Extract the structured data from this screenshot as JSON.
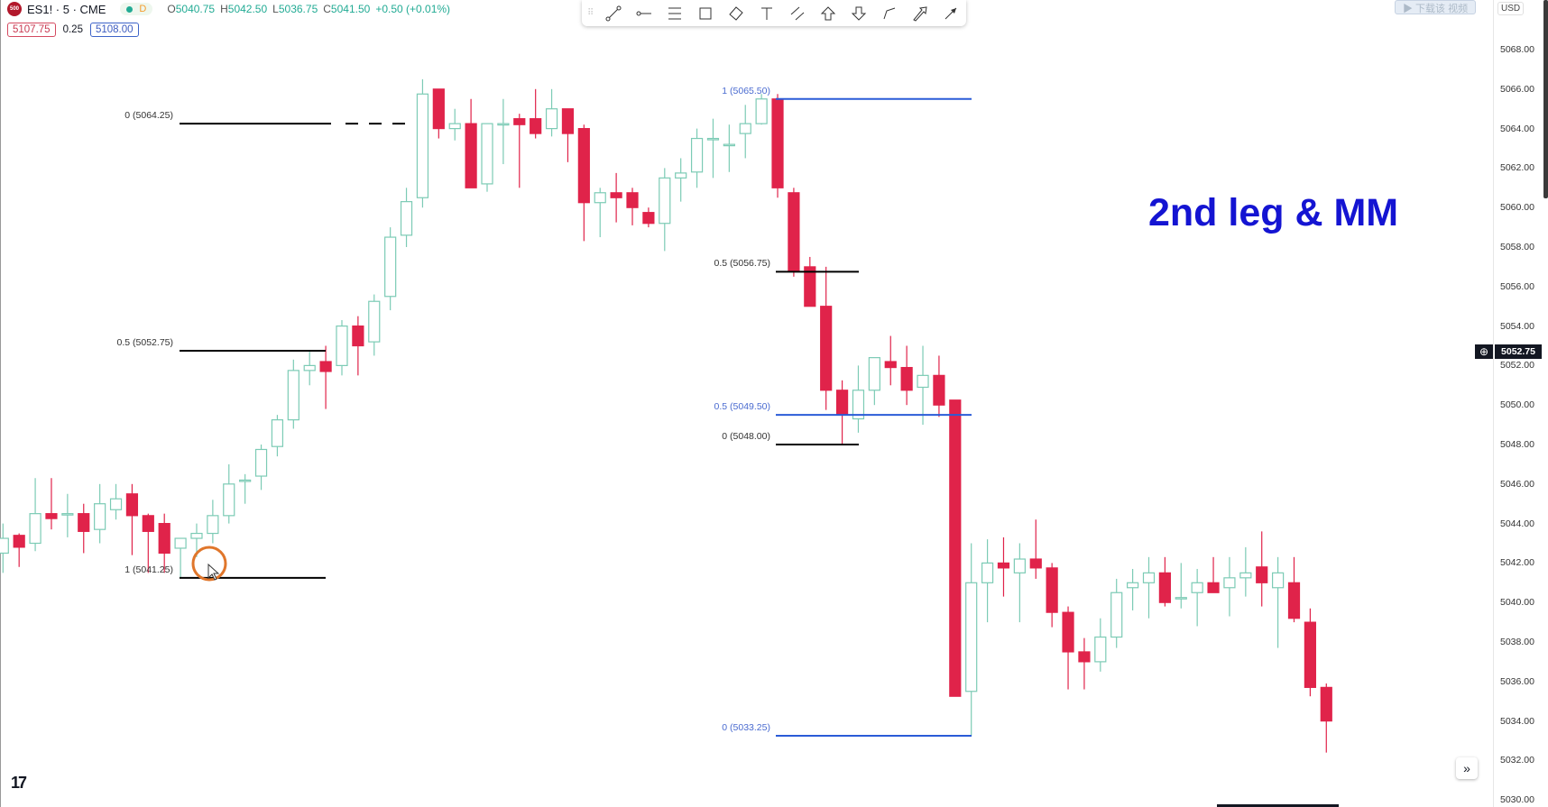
{
  "header": {
    "symbol_badge": "500",
    "symbol": "ES1! · 5 · CME",
    "session_badge": "D",
    "ohlc": {
      "o_label": "O",
      "o": "5040.75",
      "h_label": "H",
      "h": "5042.50",
      "l_label": "L",
      "l": "5036.75",
      "c_label": "C",
      "c": "5041.50",
      "change": "+0.50 (+0.01%)"
    },
    "bid": "5107.75",
    "spread": "0.25",
    "ask": "5108.00"
  },
  "toolbar": {
    "tools": [
      "trend-line",
      "horizontal-ray",
      "parallel-channel",
      "rectangle",
      "rotated-rectangle",
      "text",
      "fib-retracement",
      "arrow-up",
      "arrow-down",
      "path",
      "arrow-marker",
      "arrow"
    ]
  },
  "overlay_text": "▶ 下载该 视频",
  "axis": {
    "currency": "USD",
    "current_price": "5052.75",
    "ticks": [
      "5068.00",
      "5066.00",
      "5064.00",
      "5062.00",
      "5060.00",
      "5058.00",
      "5056.00",
      "5054.00",
      "5052.00",
      "5050.00",
      "5048.00",
      "5046.00",
      "5044.00",
      "5042.00",
      "5040.00",
      "5038.00",
      "5036.00",
      "5034.00",
      "5032.00",
      "5030.00"
    ]
  },
  "annotation": "2nd leg & MM",
  "fib_labels": {
    "left_0": "0 (5064.25)",
    "left_05": "0.5 (5052.75)",
    "left_1": "1 (5041.25)",
    "mid_05": "0.5 (5056.75)",
    "mid_0": "0 (5048.00)",
    "blue_1": "1 (5065.50)",
    "blue_05": "0.5 (5049.50)",
    "blue_0": "0 (5033.25)"
  },
  "logo": "TV",
  "goto_icon": "»",
  "colors": {
    "bull": "#7ccbb5",
    "bear": "#e0234a",
    "fib_black": "#000000",
    "fib_blue": "#2a5bd7",
    "annotation": "#1414d2"
  },
  "chart_data": {
    "type": "candlestick",
    "interval": "5",
    "ylim": [
      5030,
      5069
    ],
    "grid": false,
    "ohlc": [
      [
        5042.5,
        5044,
        5041.5,
        5043.25
      ],
      [
        5043.4,
        5043.5,
        5041.8,
        5042.8
      ],
      [
        5043,
        5046.3,
        5042.6,
        5044.5
      ],
      [
        5044.5,
        5046.3,
        5043.7,
        5044.25
      ],
      [
        5044.5,
        5045.5,
        5043.3,
        5044.5
      ],
      [
        5044.5,
        5045,
        5042.5,
        5043.6
      ],
      [
        5043.7,
        5046,
        5043,
        5045
      ],
      [
        5044.7,
        5046,
        5044.2,
        5045.25
      ],
      [
        5045.5,
        5046,
        5042.4,
        5044.4
      ],
      [
        5044.4,
        5044.5,
        5041.5,
        5043.6
      ],
      [
        5044,
        5044.5,
        5041.5,
        5042.5
      ],
      [
        5042.75,
        5043.25,
        5041.25,
        5043.25
      ],
      [
        5043.25,
        5044,
        5042.3,
        5043.5
      ],
      [
        5043.5,
        5045.2,
        5043,
        5044.4
      ],
      [
        5044.4,
        5047,
        5044,
        5046
      ],
      [
        5046.2,
        5046.5,
        5045,
        5046.2
      ],
      [
        5046.4,
        5048,
        5045.7,
        5047.75
      ],
      [
        5047.9,
        5049.5,
        5047.4,
        5049.25
      ],
      [
        5049.25,
        5052.3,
        5048.8,
        5051.75
      ],
      [
        5051.75,
        5052.7,
        5051,
        5052
      ],
      [
        5052.2,
        5053,
        5049.8,
        5051.7
      ],
      [
        5052,
        5054.3,
        5051.5,
        5054
      ],
      [
        5054,
        5054.5,
        5051.5,
        5053
      ],
      [
        5053.2,
        5055.6,
        5052.5,
        5055.25
      ],
      [
        5055.5,
        5059,
        5054.8,
        5058.5
      ],
      [
        5058.6,
        5061,
        5058,
        5060.3
      ],
      [
        5060.5,
        5066.5,
        5060,
        5065.75
      ],
      [
        5066,
        5066,
        5063.5,
        5064
      ],
      [
        5064,
        5065,
        5063.4,
        5064.25
      ],
      [
        5064.25,
        5065.5,
        5061,
        5061
      ],
      [
        5061.2,
        5064.25,
        5060.8,
        5064.25
      ],
      [
        5064.25,
        5065.5,
        5062.2,
        5064.25
      ],
      [
        5064.5,
        5064.75,
        5061,
        5064.2
      ],
      [
        5064.5,
        5066,
        5063.5,
        5063.75
      ],
      [
        5064,
        5066,
        5063.6,
        5065
      ],
      [
        5065,
        5065,
        5062.3,
        5063.75
      ],
      [
        5064,
        5064.2,
        5058.3,
        5060.25
      ],
      [
        5060.25,
        5061,
        5058.5,
        5060.75
      ],
      [
        5060.75,
        5061.75,
        5059.25,
        5060.5
      ],
      [
        5060.75,
        5061,
        5059.1,
        5060
      ],
      [
        5059.75,
        5060,
        5059,
        5059.2
      ],
      [
        5059.2,
        5062,
        5057.8,
        5061.5
      ],
      [
        5061.5,
        5062.5,
        5060.3,
        5061.75
      ],
      [
        5061.8,
        5064,
        5061,
        5063.5
      ],
      [
        5063.5,
        5064.5,
        5061.5,
        5063.5
      ],
      [
        5063.2,
        5064.2,
        5061.8,
        5063.2
      ],
      [
        5063.75,
        5065.2,
        5062.5,
        5064.25
      ],
      [
        5064.25,
        5065.75,
        5064.2,
        5065.5
      ],
      [
        5065.5,
        5065.75,
        5060.5,
        5061
      ],
      [
        5060.75,
        5061,
        5056.5,
        5056.75
      ],
      [
        5057,
        5057.5,
        5055,
        5055
      ],
      [
        5055,
        5057,
        5049.75,
        5050.75
      ],
      [
        5050.75,
        5051.25,
        5048,
        5049.5
      ],
      [
        5049.3,
        5052,
        5048.6,
        5050.75
      ],
      [
        5050.75,
        5052.4,
        5050,
        5052.4
      ],
      [
        5052.2,
        5053.5,
        5051,
        5051.9
      ],
      [
        5051.9,
        5053,
        5050,
        5050.75
      ],
      [
        5050.9,
        5053,
        5049,
        5051.5
      ],
      [
        5051.5,
        5052.5,
        5049.4,
        5050
      ],
      [
        5050.25,
        5050.25,
        5035.25,
        5035.25
      ],
      [
        5035.5,
        5043,
        5033.25,
        5041
      ],
      [
        5041,
        5043.2,
        5039,
        5042
      ],
      [
        5042,
        5043.3,
        5040.3,
        5041.75
      ],
      [
        5041.5,
        5043,
        5039,
        5042.2
      ],
      [
        5042.2,
        5044.2,
        5041.2,
        5041.75
      ],
      [
        5041.75,
        5042,
        5038.75,
        5039.5
      ],
      [
        5039.5,
        5039.8,
        5035.6,
        5037.5
      ],
      [
        5037.5,
        5038.2,
        5035.6,
        5037
      ],
      [
        5037,
        5039.2,
        5036.5,
        5038.25
      ],
      [
        5038.25,
        5041.2,
        5037.7,
        5040.5
      ],
      [
        5040.75,
        5041.7,
        5039.6,
        5041
      ],
      [
        5041,
        5042.3,
        5039.2,
        5041.5
      ],
      [
        5041.5,
        5042.3,
        5039.8,
        5040
      ],
      [
        5040.25,
        5042,
        5039.7,
        5040.25
      ],
      [
        5040.5,
        5041.7,
        5038.8,
        5041
      ],
      [
        5041,
        5042.3,
        5040.5,
        5040.5
      ],
      [
        5040.75,
        5042.3,
        5039.3,
        5041.25
      ],
      [
        5041.25,
        5042.8,
        5040.3,
        5041.5
      ],
      [
        5041.8,
        5043.6,
        5039.8,
        5041
      ],
      [
        5040.75,
        5042.3,
        5037.7,
        5041.5
      ],
      [
        5041,
        5042.3,
        5039,
        5039.2
      ],
      [
        5039,
        5039.7,
        5035.25,
        5035.7
      ],
      [
        5035.7,
        5035.9,
        5032.4,
        5034
      ]
    ],
    "fib_levels": [
      {
        "group": "left",
        "ratio": "0",
        "price": 5064.25
      },
      {
        "group": "left",
        "ratio": "0.5",
        "price": 5052.75
      },
      {
        "group": "left",
        "ratio": "1",
        "price": 5041.25
      },
      {
        "group": "mid",
        "ratio": "0.5",
        "price": 5056.75
      },
      {
        "group": "mid",
        "ratio": "0",
        "price": 5048.0
      },
      {
        "group": "blue",
        "ratio": "1",
        "price": 5065.5
      },
      {
        "group": "blue",
        "ratio": "0.5",
        "price": 5049.5
      },
      {
        "group": "blue",
        "ratio": "0",
        "price": 5033.25
      }
    ]
  }
}
